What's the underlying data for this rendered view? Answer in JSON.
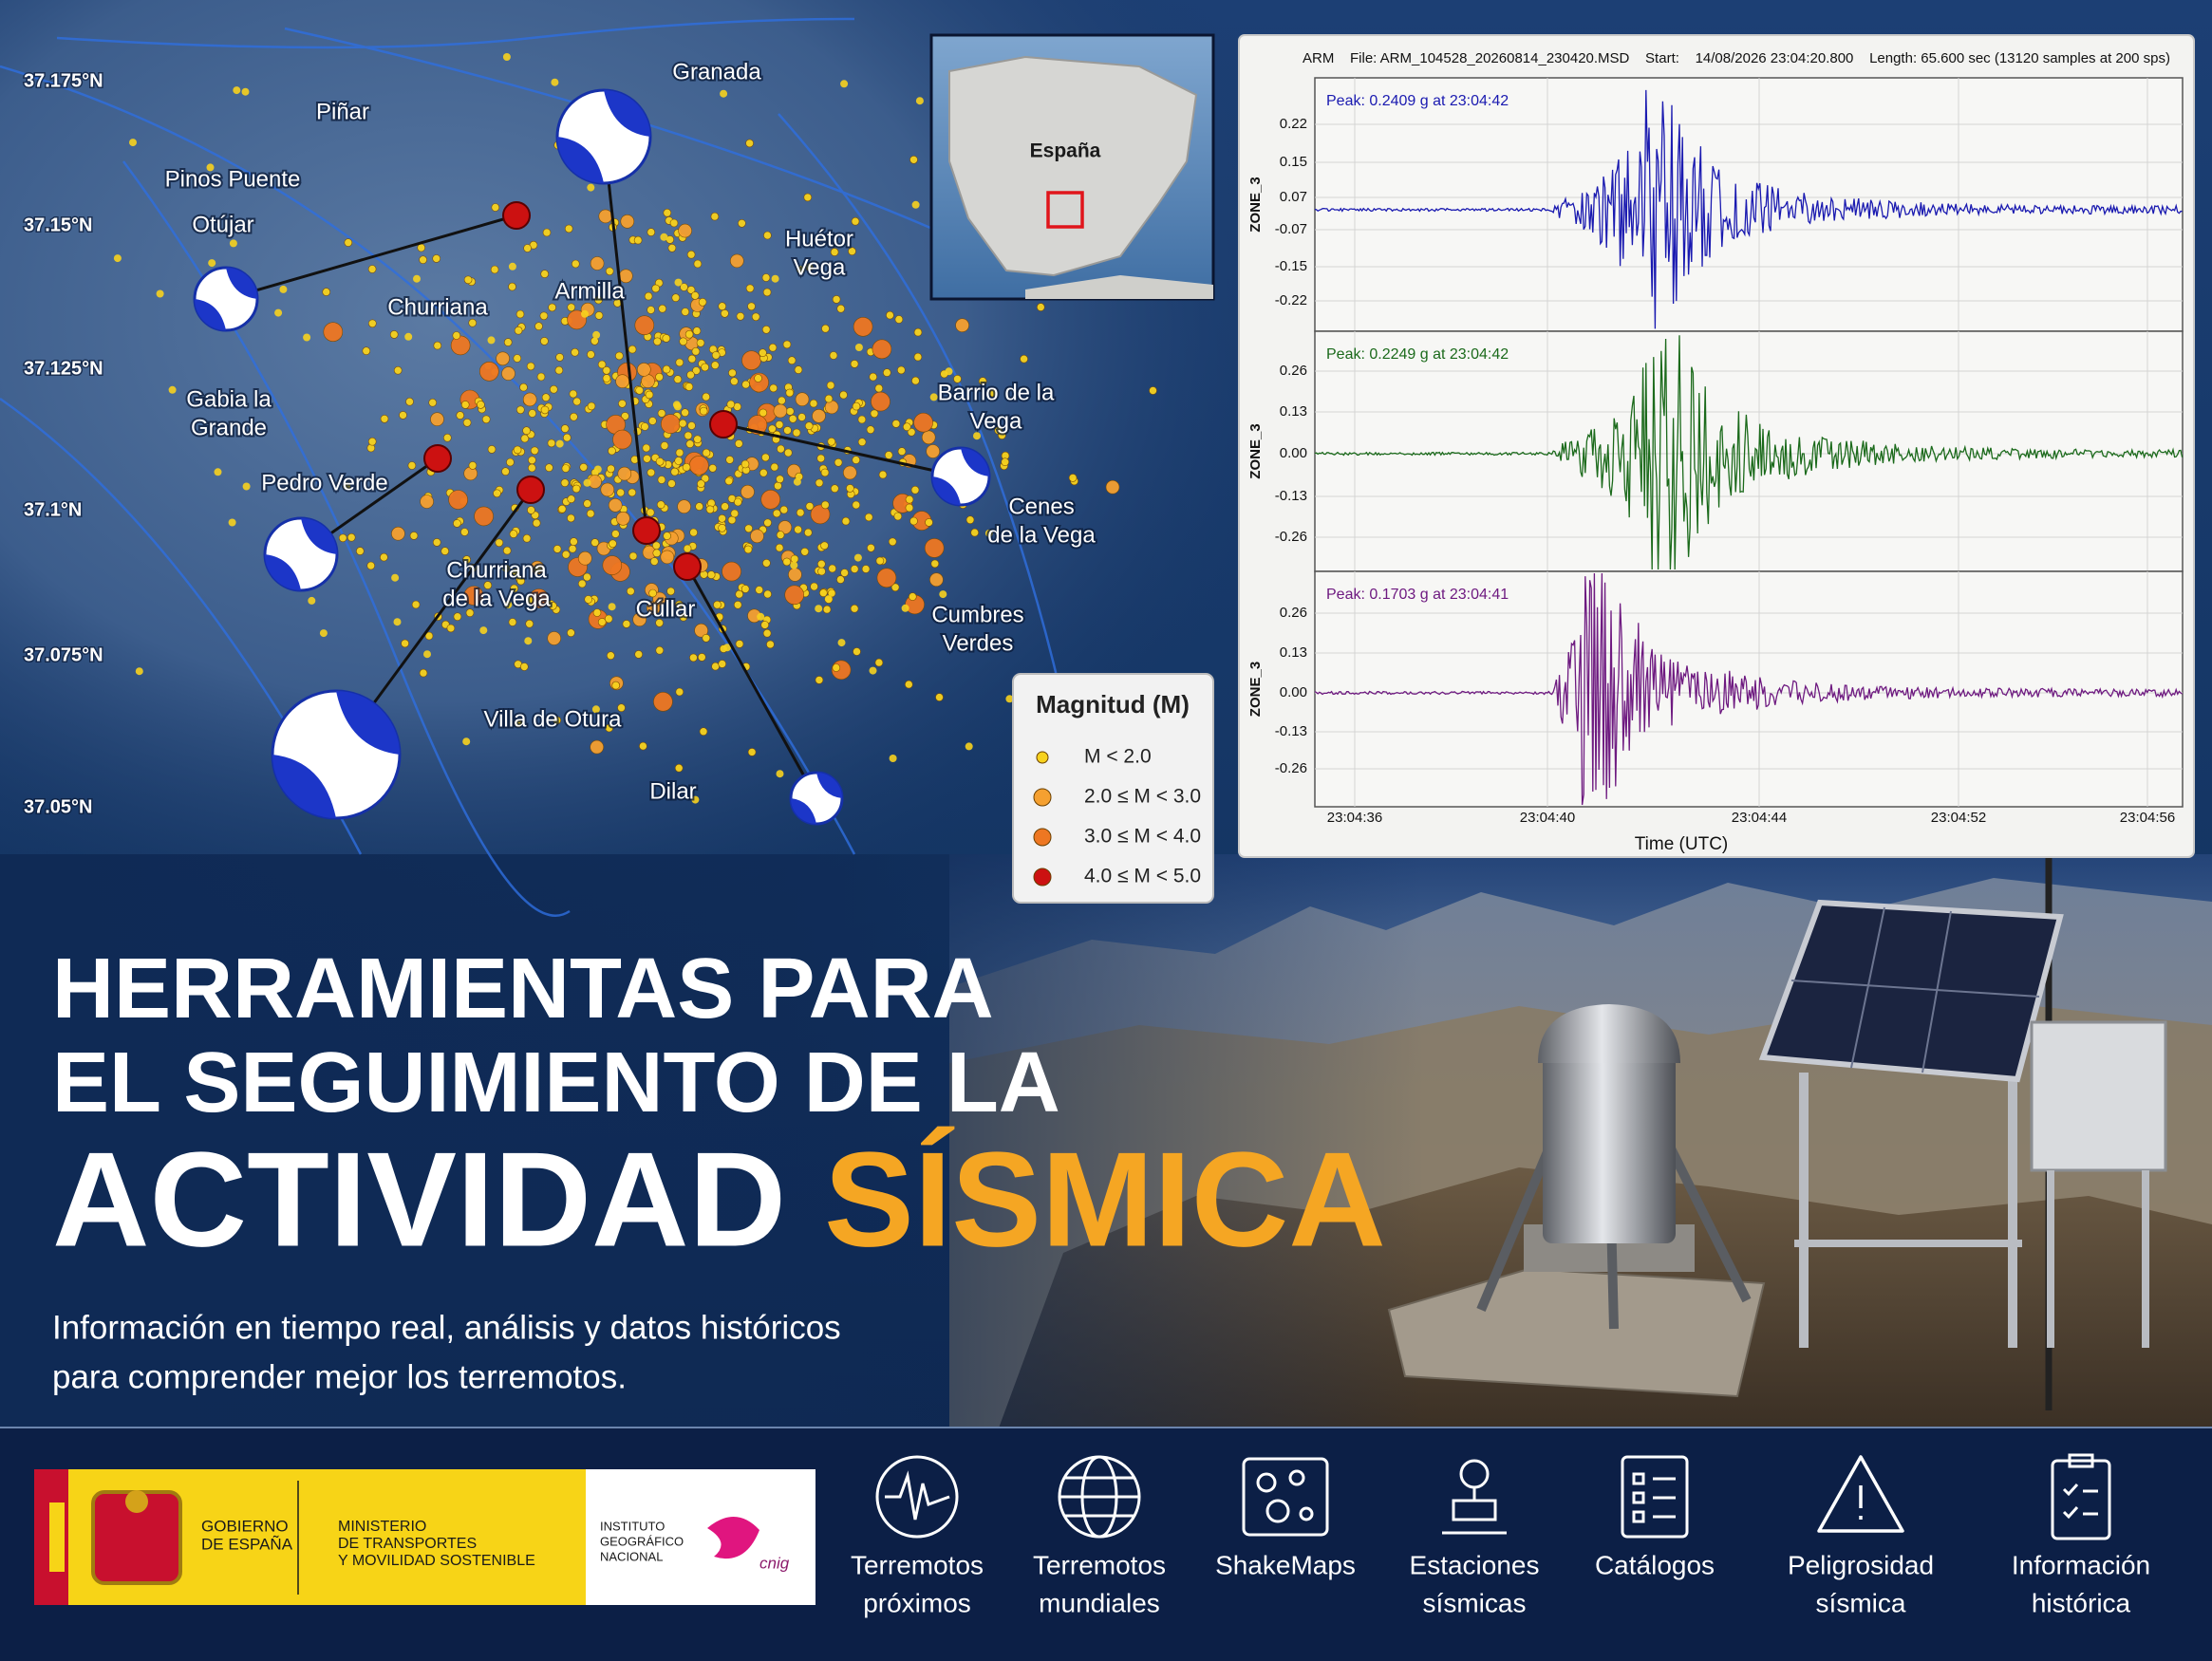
{
  "map": {
    "latitudes": [
      "37.175°N",
      "37.15°N",
      "37.125°N",
      "37.1°N",
      "37.075°N",
      "37.05°N"
    ],
    "places": [
      [
        "Granada"
      ],
      [
        "Piñar"
      ],
      [
        "Pinos Puente"
      ],
      [
        "Otújar"
      ],
      [
        "Huétor",
        "Vega"
      ],
      [
        "Churriana"
      ],
      [
        "Armilla"
      ],
      [
        "Gabia la",
        "Grande"
      ],
      [
        "Barrio de la",
        "Vega"
      ],
      [
        "Pedro Verde"
      ],
      [
        "Cenes",
        "de la Vega"
      ],
      [
        "Churriana",
        "de la Vega"
      ],
      [
        "Cúllar"
      ],
      [
        "Cumbres",
        "Verdes"
      ],
      [
        "Villa de Otura"
      ],
      [
        "Dilar"
      ]
    ],
    "inset_label": "España",
    "legend": {
      "title": "Magnitud (M)",
      "items": [
        "M < 2.0",
        "2.0 ≤ M < 3.0",
        "3.0 ≤ M < 4.0",
        "4.0 ≤ M < 5.0"
      ]
    }
  },
  "seismogram": {
    "header": "ARM    File: ARM_104528_20260814_230420.MSD    Start:    14/08/2026 23:04:20.800    Length: 65.600 sec (13120 samples at 200 sps)",
    "channels": [
      {
        "peak": "Peak: 0.2409 g at 23:04:42",
        "axis_label": "ZONE_3",
        "ticks": [
          "0.22",
          "0.15",
          "0.07",
          "-0.07",
          "-0.15",
          "-0.22"
        ]
      },
      {
        "peak": "Peak: 0.2249 g at 23:04:42",
        "axis_label": "ZONE_3",
        "ticks": [
          "0.26",
          "0.13",
          "0.00",
          "-0.13",
          "-0.26"
        ]
      },
      {
        "peak": "Peak: 0.1703 g at 23:04:41",
        "axis_label": "ZONE_3",
        "ticks": [
          "0.26",
          "0.13",
          "0.00",
          "-0.13",
          "-0.26"
        ]
      }
    ],
    "x_ticks": [
      "23:04:36",
      "23:04:40",
      "23:04:44",
      "23:04:52",
      "23:04:56"
    ],
    "x_label": "Time (UTC)"
  },
  "headline": {
    "line1": "HERRAMIENTAS PARA",
    "line2": "EL SEGUIMIENTO DE LA",
    "line3": "ACTIVIDAD",
    "line3_highlight": "SÍSMICA"
  },
  "subtitle": [
    "Información en tiempo real, análisis y datos históricos",
    "para comprender mejor los terremotos."
  ],
  "logos": {
    "government": [
      "GOBIERNO",
      "DE ESPAÑA"
    ],
    "ministry": [
      "MINISTERIO",
      "DE TRANSPORTES",
      "Y MOVILIDAD SOSTENIBLE"
    ],
    "institute": [
      "INSTITUTO",
      "GEOGRÁFICO",
      "NACIONAL"
    ],
    "cnig": "cnig"
  },
  "nav": [
    [
      "Terremotos",
      "próximos"
    ],
    [
      "Terremotos",
      "mundiales"
    ],
    [
      "ShakeMaps"
    ],
    [
      "Estaciones",
      "sísmicas"
    ],
    [
      "Catálogos"
    ],
    [
      "Peligrosidad",
      "sísmica"
    ],
    [
      "Información",
      "histórica"
    ]
  ]
}
